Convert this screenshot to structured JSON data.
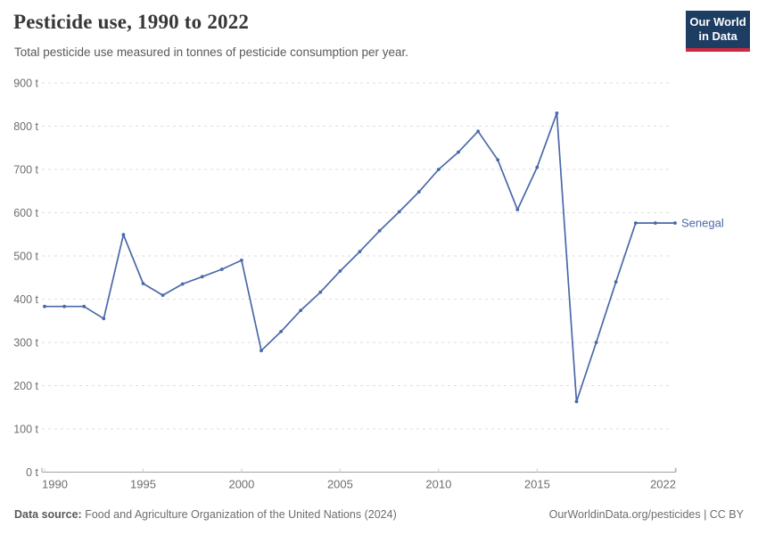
{
  "header": {
    "title": "Pesticide use, 1990 to 2022",
    "subtitle": "Total pesticide use measured in tonnes of pesticide consumption per year.",
    "logo": {
      "line1": "Our World",
      "line2": "in Data",
      "bg_color": "#1d3d63",
      "accent_color": "#d0283e"
    }
  },
  "chart_data": {
    "type": "line",
    "title": "Pesticide use, 1990 to 2022",
    "xlabel": "",
    "ylabel": "",
    "unit": "t",
    "ylim": [
      0,
      900
    ],
    "yticks": [
      0,
      100,
      200,
      300,
      400,
      500,
      600,
      700,
      800,
      900
    ],
    "ytick_suffix": " t",
    "xticks": [
      1990,
      1995,
      2000,
      2005,
      2010,
      2015,
      2022
    ],
    "grid": "horizontal-dashed",
    "legend_position": "end-of-line-label",
    "x": [
      1990,
      1991,
      1992,
      1993,
      1994,
      1995,
      1996,
      1997,
      1998,
      1999,
      2000,
      2001,
      2002,
      2003,
      2004,
      2005,
      2006,
      2007,
      2008,
      2009,
      2010,
      2011,
      2012,
      2013,
      2014,
      2015,
      2016,
      2017,
      2018,
      2019,
      2020,
      2021,
      2022
    ],
    "series": [
      {
        "name": "Senegal",
        "color": "#4a69a8",
        "values": [
          383,
          383,
          383,
          355,
          549,
          436,
          409,
          435,
          452,
          469,
          490,
          281,
          325,
          374,
          416,
          465,
          510,
          558,
          602,
          648,
          700,
          740,
          788,
          722,
          607,
          705,
          830,
          163,
          300,
          440,
          576,
          576,
          576
        ]
      }
    ],
    "colors": {
      "grid": "#dedede",
      "axis": "#a1a1a1",
      "tick": "#cfcfcf",
      "tick_label": "#6e6e6e"
    }
  },
  "footer": {
    "source_label": "Data source:",
    "source_text": "Food and Agriculture Organization of the United Nations (2024)",
    "credit": "OurWorldinData.org/pesticides | CC BY"
  }
}
